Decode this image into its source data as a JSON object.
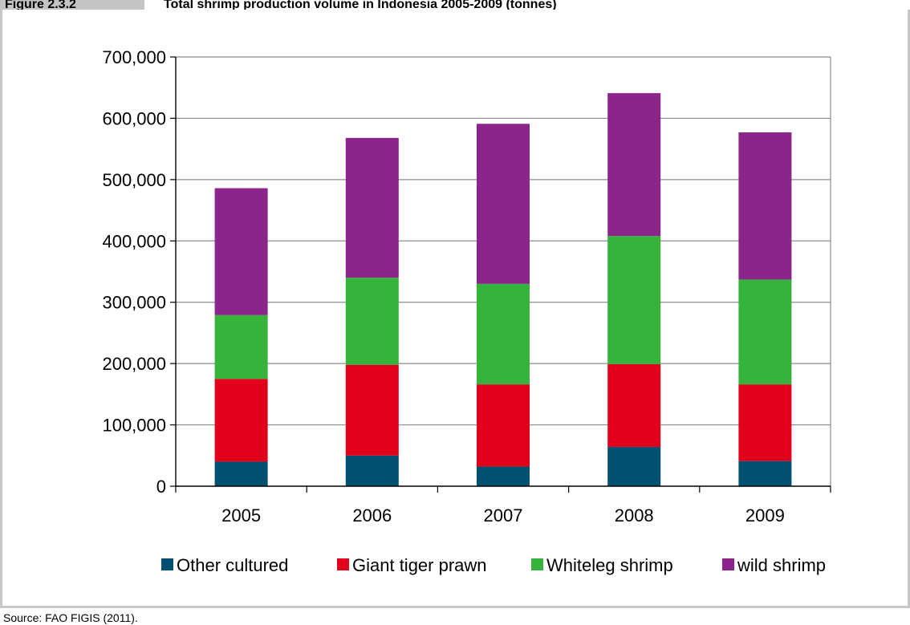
{
  "header": {
    "figure_label": "Figure 2.3.2",
    "title": "Total shrimp production volume in Indonesia 2005-2009 (tonnes)"
  },
  "source": "Source: FAO FIGIS (2011).",
  "colors": {
    "other_cultured": "#005071",
    "giant_tiger_prawn": "#e0001b",
    "whiteleg_shrimp": "#35b33a",
    "wild_shrimp": "#8b248b",
    "gridline": "#8c8c8c",
    "frame": "#c8c8c8"
  },
  "chart_data": {
    "type": "bar",
    "stacked": true,
    "categories": [
      "2005",
      "2006",
      "2007",
      "2008",
      "2009"
    ],
    "series": [
      {
        "name": "Other cultured",
        "color_key": "other_cultured",
        "values": [
          40000,
          50000,
          32000,
          64000,
          41000
        ]
      },
      {
        "name": "Giant tiger prawn",
        "color_key": "giant_tiger_prawn",
        "values": [
          135000,
          148000,
          134000,
          135000,
          125000
        ]
      },
      {
        "name": "Whiteleg shrimp",
        "color_key": "whiteleg_shrimp",
        "values": [
          104000,
          142000,
          164000,
          209000,
          171000
        ]
      },
      {
        "name": "wild shrimp",
        "color_key": "wild_shrimp",
        "values": [
          207000,
          228000,
          261000,
          233000,
          240000
        ]
      }
    ],
    "ylim": [
      0,
      700000
    ],
    "yticks": [
      "0",
      "100,000",
      "200,000",
      "300,000",
      "400,000",
      "500,000",
      "600,000",
      "700,000"
    ],
    "ytick_values": [
      0,
      100000,
      200000,
      300000,
      400000,
      500000,
      600000,
      700000
    ],
    "grid": true,
    "legend_position": "bottom"
  }
}
